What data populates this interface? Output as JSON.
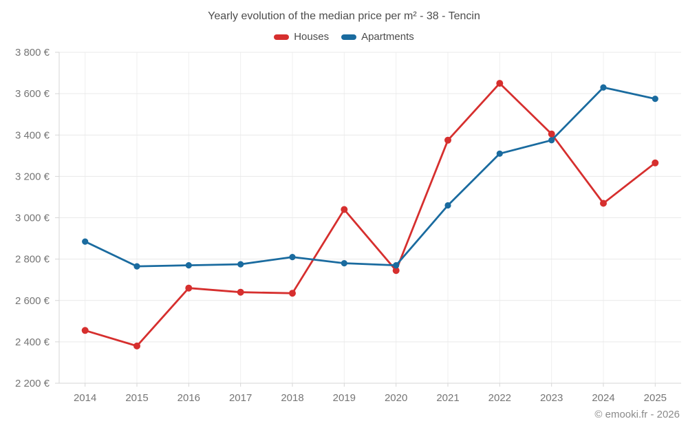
{
  "title": "Yearly evolution of the median price per m² - 38 - Tencin",
  "footer": "© emooki.fr - 2026",
  "chart_data": {
    "type": "line",
    "x": [
      "2014",
      "2015",
      "2016",
      "2017",
      "2018",
      "2019",
      "2020",
      "2021",
      "2022",
      "2023",
      "2024",
      "2025"
    ],
    "series": [
      {
        "name": "Houses",
        "color": "#d62f2e",
        "values": [
          2455,
          2380,
          2660,
          2640,
          2635,
          3040,
          2745,
          3375,
          3650,
          3405,
          3070,
          3265
        ]
      },
      {
        "name": "Apartments",
        "color": "#1a6b9f",
        "values": [
          2885,
          2765,
          2770,
          2775,
          2810,
          2780,
          2770,
          3060,
          3310,
          3375,
          3630,
          3575
        ]
      }
    ],
    "ylim": [
      2200,
      3800
    ],
    "y_ticks": [
      {
        "value": 2200,
        "label": "2 200 €"
      },
      {
        "value": 2400,
        "label": "2 400 €"
      },
      {
        "value": 2600,
        "label": "2 600 €"
      },
      {
        "value": 2800,
        "label": "2 800 €"
      },
      {
        "value": 3000,
        "label": "3 000 €"
      },
      {
        "value": 3200,
        "label": "3 200 €"
      },
      {
        "value": 3400,
        "label": "3 400 €"
      },
      {
        "value": 3600,
        "label": "3 600 €"
      },
      {
        "value": 3800,
        "label": "3 800 €"
      }
    ],
    "grid": true,
    "legend_position": "top",
    "colors": {
      "grid_line": "#e9e9e9",
      "axis_line": "#d6d6d6",
      "tick_label": "#757575",
      "title_text": "#4c4c4c"
    }
  }
}
